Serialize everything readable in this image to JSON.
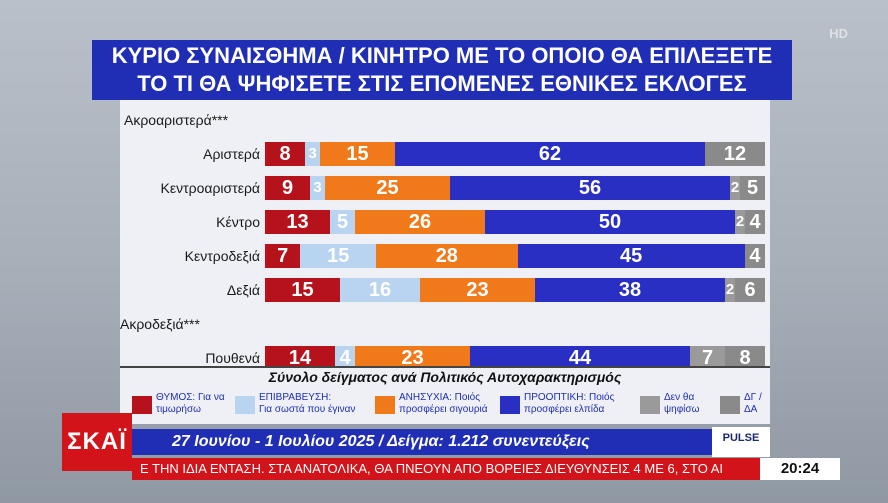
{
  "title_line1": "ΚΥΡΙΟ ΣΥΝΑΙΣΘΗΜΑ / ΚΙΝΗΤΡΟ ΜΕ ΤΟ ΟΠΟΙΟ ΘΑ ΕΠΙΛΕΞΕΤΕ",
  "title_line2": "ΤΟ ΤΙ ΘΑ ΨΗΦΙΣΕΤΕ ΣΤΙΣ ΕΠΟΜΕΝΕΣ ΕΘΝΙΚΕΣ ΕΚΛΟΓΕΣ",
  "hd_label": "HD",
  "subtitle": "Σύνολο δείγματος ανά Πολιτικός Αυτοχαρακτηρισμός",
  "info_text": "27 Ιουνίου - 1 Ιουλίου 2025 / Δείγμα: 1.212 συνεντεύξεις",
  "channel_logo": "ΣΚΑΪ",
  "pulse_label": "PULSE",
  "ticker_text": "Ε ΤΗΝ ΙΔΙΑ ΕΝΤΑΣΗ. ΣΤΑ ΑΝΑΤΟΛΙΚΑ, ΘΑ ΠΝΕΟΥΝ ΑΠΟ ΒΟΡΕΙΕΣ ΔΙΕΥΘΥΝΣΕΙΣ 4 ΜΕ 6, ΣΤΟ ΑΙ",
  "clock": "20:24",
  "colors": {
    "thymos": "#b5121b",
    "epivraveusi": "#b8d4f0",
    "anisychia": "#f07a1a",
    "prooptiki": "#2a2fc4",
    "den_tha": "#9a9a9a",
    "dg_da": "#8a8a8a"
  },
  "chart_data": {
    "type": "bar",
    "stacked": true,
    "orientation": "horizontal",
    "title": "ΚΥΡΙΟ ΣΥΝΑΙΣΘΗΜΑ / ΚΙΝΗΤΡΟ ΜΕ ΤΟ ΟΠΟΙΟ ΘΑ ΕΠΙΛΕΞΕΤΕ ΤΟ ΤΙ ΘΑ ΨΗΦΙΣΕΤΕ ΣΤΙΣ ΕΠΟΜΕΝΕΣ ΕΘΝΙΚΕΣ ΕΚΛΟΓΕΣ",
    "categories": [
      "Ακροαριστερά***",
      "Αριστερά",
      "Κεντροαριστερά",
      "Κέντρο",
      "Κεντροδεξιά",
      "Δεξιά",
      "Ακροδεξιά***",
      "Πουθενά"
    ],
    "series": [
      {
        "name": "ΘΥΜΟΣ: Για να τιμωρήσω",
        "values": [
          null,
          8,
          9,
          13,
          7,
          15,
          null,
          14
        ]
      },
      {
        "name": "ΕΠΙΒΡΑΒΕΥΣΗ: Για σωστά που έγιναν",
        "values": [
          null,
          3,
          3,
          5,
          15,
          16,
          null,
          4
        ]
      },
      {
        "name": "ΑΝΗΣΥΧΙΑ: Ποιός προσφέρει σιγουριά",
        "values": [
          null,
          15,
          25,
          26,
          28,
          23,
          null,
          23
        ]
      },
      {
        "name": "ΠΡΟΟΠΤΙΚΗ: Ποιός προσφέρει ελπίδα",
        "values": [
          null,
          62,
          56,
          50,
          45,
          38,
          null,
          44
        ]
      },
      {
        "name": "Δεν θα ψηφίσω",
        "values": [
          null,
          0,
          2,
          2,
          0,
          2,
          null,
          7
        ]
      },
      {
        "name": "ΔΓ / ΔΑ",
        "values": [
          null,
          12,
          5,
          4,
          4,
          6,
          null,
          8
        ]
      }
    ],
    "legend": [
      {
        "key": "thymos",
        "line1": "ΘΥΜΟΣ: Για να",
        "line2": "τιμωρήσω"
      },
      {
        "key": "epivraveusi",
        "line1": "ΕΠΙΒΡΑΒΕΥΣΗ:",
        "line2": "Για σωστά που έγιναν"
      },
      {
        "key": "anisychia",
        "line1": "ΑΝΗΣΥΧΙΑ: Ποιός",
        "line2": "προσφέρει σιγουριά"
      },
      {
        "key": "prooptiki",
        "line1": "ΠΡΟΟΠΤΙΚΗ: Ποιός",
        "line2": "προσφέρει ελπίδα"
      },
      {
        "key": "den_tha",
        "line1": "Δεν θα",
        "line2": "ψηφίσω"
      },
      {
        "key": "dg_da",
        "line1": "ΔΓ /",
        "line2": "ΔΑ"
      }
    ],
    "legend_position": "bottom",
    "xlim": [
      0,
      100
    ]
  }
}
